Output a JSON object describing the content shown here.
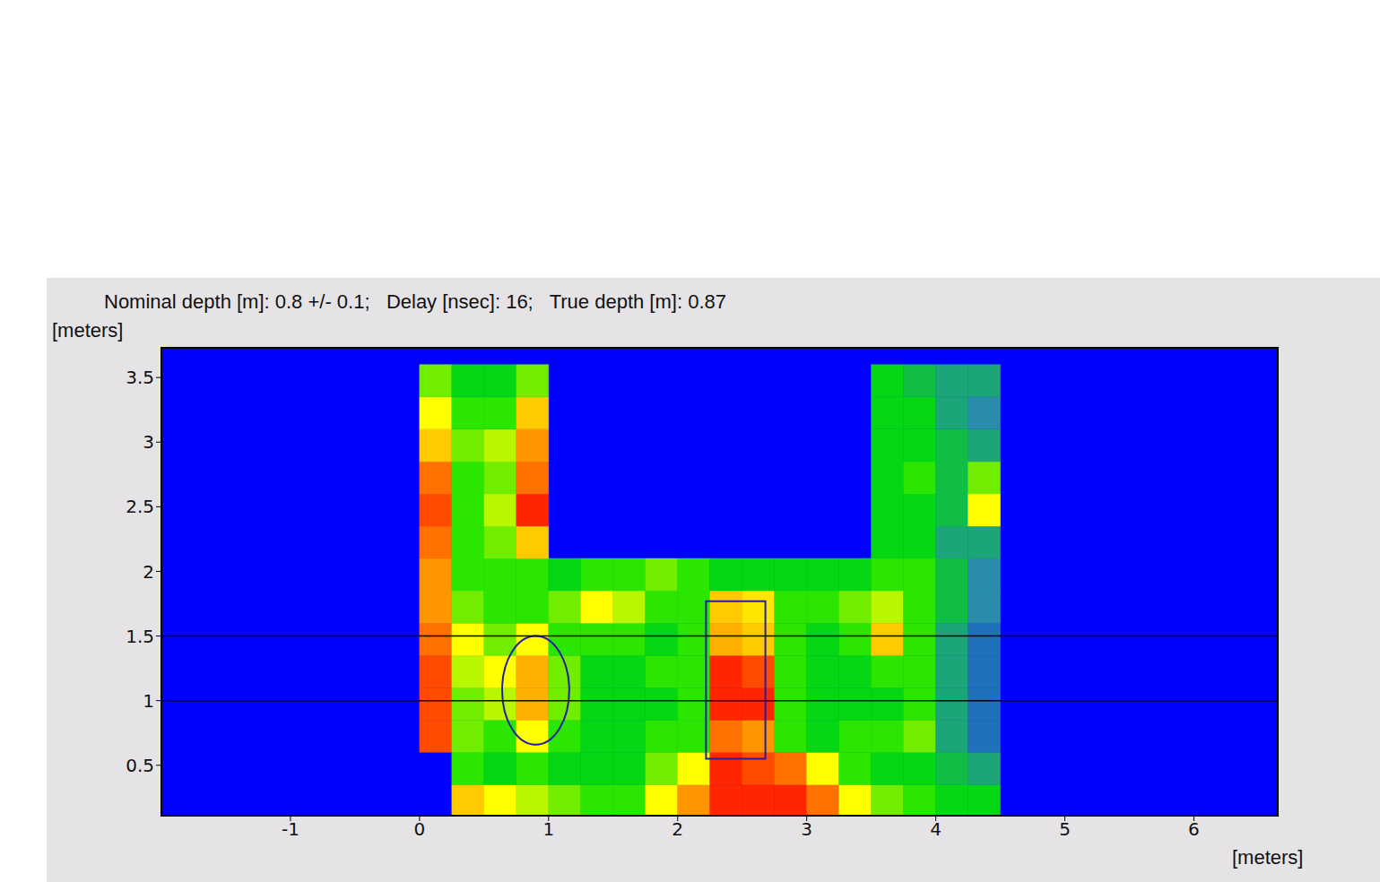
{
  "chart_data": {
    "type": "heatmap",
    "title": "Nominal depth [m]: 0.8 +/- 0.1;   Delay [nsec]: 16;   True depth [m]: 0.87",
    "x_label": "[meters]",
    "y_label": "[meters]",
    "xlim": [
      -2,
      6.65
    ],
    "ylim": [
      0.11,
      3.73
    ],
    "xticks": [
      -1,
      0,
      1,
      2,
      3,
      4,
      5,
      6
    ],
    "yticks": [
      0.5,
      1,
      1.5,
      2,
      2.5,
      3,
      3.5
    ],
    "zlim": [
      0,
      1
    ],
    "x_edges": [
      0,
      0.25,
      0.5,
      0.75,
      1,
      1.25,
      1.5,
      1.75,
      2,
      2.25,
      2.5,
      2.75,
      3,
      3.25,
      3.5,
      3.75,
      4,
      4.25,
      4.5
    ],
    "y_edges": [
      0.1,
      0.35,
      0.6,
      0.85,
      1.1,
      1.35,
      1.6,
      1.85,
      2.1,
      2.35,
      2.6,
      2.85,
      3.1,
      3.35,
      3.6
    ],
    "z": [
      [
        null,
        0.7,
        0.6,
        0.55,
        0.5,
        0.45,
        0.45,
        0.6,
        0.8,
        0.95,
        0.95,
        0.95,
        0.85,
        0.6,
        0.5,
        0.45,
        0.4,
        0.4
      ],
      [
        null,
        0.45,
        0.4,
        0.45,
        0.4,
        0.4,
        0.4,
        0.5,
        0.6,
        0.95,
        0.9,
        0.85,
        0.6,
        0.45,
        0.4,
        0.4,
        0.35,
        0.3
      ],
      [
        0.9,
        0.5,
        0.45,
        0.6,
        0.45,
        0.4,
        0.4,
        0.45,
        0.45,
        0.85,
        0.8,
        0.45,
        0.4,
        0.45,
        0.45,
        0.5,
        0.3,
        0.2
      ],
      [
        0.9,
        0.5,
        0.55,
        0.75,
        0.5,
        0.4,
        0.4,
        0.4,
        0.45,
        0.95,
        0.95,
        0.45,
        0.4,
        0.4,
        0.4,
        0.45,
        0.3,
        0.2
      ],
      [
        0.9,
        0.55,
        0.6,
        0.75,
        0.5,
        0.4,
        0.4,
        0.45,
        0.45,
        0.95,
        0.9,
        0.45,
        0.4,
        0.4,
        0.45,
        0.45,
        0.3,
        0.2
      ],
      [
        0.85,
        0.6,
        0.5,
        0.6,
        0.45,
        0.45,
        0.45,
        0.4,
        0.45,
        0.75,
        0.7,
        0.45,
        0.4,
        0.45,
        0.7,
        0.45,
        0.3,
        0.2
      ],
      [
        0.8,
        0.5,
        0.45,
        0.45,
        0.5,
        0.6,
        0.55,
        0.45,
        0.45,
        0.7,
        0.65,
        0.45,
        0.45,
        0.5,
        0.55,
        0.45,
        0.35,
        0.25
      ],
      [
        0.8,
        0.45,
        0.45,
        0.45,
        0.4,
        0.45,
        0.45,
        0.5,
        0.45,
        0.4,
        0.4,
        0.4,
        0.4,
        0.4,
        0.45,
        0.45,
        0.35,
        0.25
      ],
      [
        0.85,
        0.45,
        0.5,
        0.7,
        null,
        null,
        null,
        null,
        null,
        null,
        null,
        null,
        null,
        null,
        0.4,
        0.4,
        0.3,
        0.3
      ],
      [
        0.9,
        0.45,
        0.55,
        0.95,
        null,
        null,
        null,
        null,
        null,
        null,
        null,
        null,
        null,
        null,
        0.4,
        0.4,
        0.35,
        0.6
      ],
      [
        0.85,
        0.45,
        0.5,
        0.85,
        null,
        null,
        null,
        null,
        null,
        null,
        null,
        null,
        null,
        null,
        0.4,
        0.45,
        0.35,
        0.5
      ],
      [
        0.7,
        0.5,
        0.55,
        0.8,
        null,
        null,
        null,
        null,
        null,
        null,
        null,
        null,
        null,
        null,
        0.4,
        0.4,
        0.35,
        0.3
      ],
      [
        0.6,
        0.45,
        0.45,
        0.7,
        null,
        null,
        null,
        null,
        null,
        null,
        null,
        null,
        null,
        null,
        0.4,
        0.4,
        0.3,
        0.25
      ],
      [
        0.5,
        0.4,
        0.4,
        0.5,
        null,
        null,
        null,
        null,
        null,
        null,
        null,
        null,
        null,
        null,
        0.4,
        0.35,
        0.3,
        0.3
      ]
    ],
    "reference_lines": [
      1,
      1.5
    ],
    "ellipses": [
      {
        "x": [
          0.64,
          1.16
        ],
        "y": [
          0.66,
          1.5
        ]
      }
    ],
    "rectangles": [
      {
        "x": [
          2.22,
          2.68
        ],
        "y": [
          0.55,
          1.77
        ]
      }
    ]
  }
}
